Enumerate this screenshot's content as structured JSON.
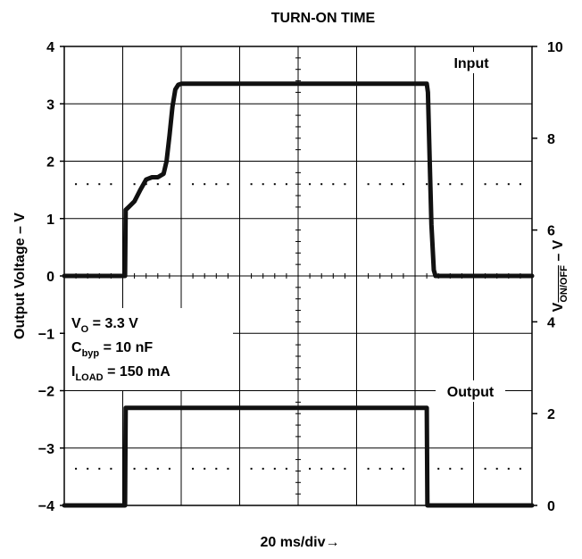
{
  "chart_data": {
    "type": "line",
    "title": "TURN-ON TIME",
    "xlabel": "20 ms/div→",
    "ylabel_left": "Output Voltage – V",
    "ylabel_right": "V",
    "ylabel_right_sub": "ON/OFF",
    "ylabel_right_suffix": " – V",
    "x_divisions": 8,
    "xlim": [
      0,
      8
    ],
    "left_axis": {
      "ylim": [
        -4,
        4
      ],
      "ticks": [
        {
          "value": 4,
          "label": "4"
        },
        {
          "value": 3,
          "label": "3"
        },
        {
          "value": 2,
          "label": "2"
        },
        {
          "value": 1,
          "label": "1"
        },
        {
          "value": 0,
          "label": "0"
        },
        {
          "value": -1,
          "label": "−1"
        },
        {
          "value": -2,
          "label": "−2"
        },
        {
          "value": -3,
          "label": "−3"
        },
        {
          "value": -4,
          "label": "−4"
        }
      ]
    },
    "right_axis": {
      "ylim": [
        0,
        10
      ],
      "ticks": [
        {
          "value": 10,
          "label": "10"
        },
        {
          "value": 8,
          "label": "8"
        },
        {
          "value": 6,
          "label": "6"
        },
        {
          "value": 4,
          "label": "4"
        },
        {
          "value": 2,
          "label": "2"
        },
        {
          "value": 0,
          "label": "0"
        }
      ]
    },
    "grid": true,
    "series": [
      {
        "name": "Input",
        "axis": "left",
        "x": [
          0,
          1.04,
          1.05,
          1.1,
          1.2,
          1.3,
          1.4,
          1.5,
          1.6,
          1.7,
          1.75,
          1.8,
          1.85,
          1.9,
          1.95,
          2.0,
          6.2,
          6.22,
          6.25,
          6.28,
          6.32,
          6.35,
          8
        ],
        "y": [
          0,
          0,
          1.15,
          1.2,
          1.3,
          1.5,
          1.68,
          1.72,
          1.72,
          1.78,
          2.0,
          2.45,
          2.95,
          3.25,
          3.33,
          3.35,
          3.35,
          3.2,
          2.0,
          0.9,
          0.1,
          0,
          0
        ]
      },
      {
        "name": "Output",
        "axis": "left",
        "x": [
          0,
          1.04,
          1.05,
          6.2,
          6.21,
          8
        ],
        "y": [
          -4,
          -4,
          -2.3,
          -2.3,
          -4,
          -4
        ]
      }
    ],
    "annotations": [
      {
        "base": "V",
        "sub": "O",
        "text": " = 3.3 V"
      },
      {
        "base": "C",
        "sub": "byp",
        "text": " = 10 nF"
      },
      {
        "base": "I",
        "sub": "LOAD",
        "text": " = 150 mA"
      }
    ]
  }
}
